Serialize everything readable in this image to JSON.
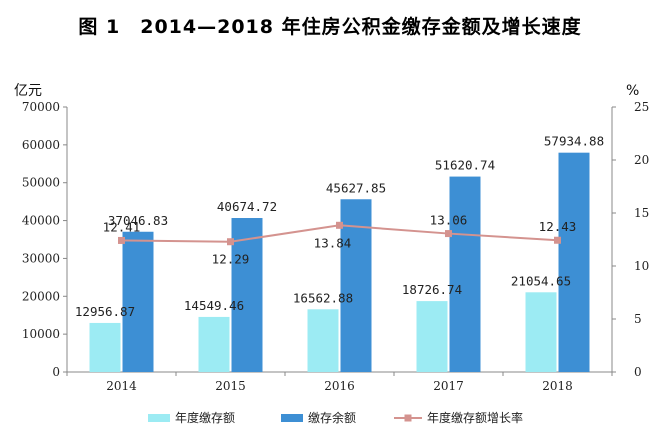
{
  "chart_data": {
    "type": "bar",
    "title": "图 1　2014—2018 年住房公积金缴存金额及增长速度",
    "categories": [
      "2014",
      "2015",
      "2016",
      "2017",
      "2018"
    ],
    "series": [
      {
        "name": "年度缴存额",
        "axis": "left",
        "type": "bar",
        "color": "#9CEBF3",
        "values": [
          12956.87,
          14549.46,
          16562.88,
          18726.74,
          21054.65
        ],
        "labels": [
          "12956.87",
          "14549.46",
          "16562.88",
          "18726.74",
          "21054.65"
        ]
      },
      {
        "name": "缴存余额",
        "axis": "right-bar",
        "type": "bar",
        "color": "#3D8FD4",
        "values": [
          37046.83,
          40674.72,
          45627.85,
          51620.74,
          57934.88
        ],
        "labels": [
          "37046.83",
          "40674.72",
          "45627.85",
          "51620.74",
          "57934.88"
        ]
      },
      {
        "name": "年度缴存额增长率",
        "axis": "right",
        "type": "line",
        "color": "#D4938F",
        "values": [
          12.41,
          12.29,
          13.84,
          13.06,
          12.43
        ],
        "labels": [
          "12.41",
          "12.29",
          "13.84",
          "13.06",
          "12.43"
        ]
      }
    ],
    "left_axis": {
      "unit": "亿元",
      "ylim": [
        0,
        70000
      ],
      "ticks": [
        "0",
        "10000",
        "20000",
        "30000",
        "40000",
        "50000",
        "60000",
        "70000"
      ]
    },
    "right_axis": {
      "unit": "%",
      "ylim": [
        0,
        25
      ],
      "ticks": [
        "0",
        "5",
        "10",
        "15",
        "20",
        "25"
      ]
    },
    "legend_position": "bottom",
    "grid": false
  }
}
